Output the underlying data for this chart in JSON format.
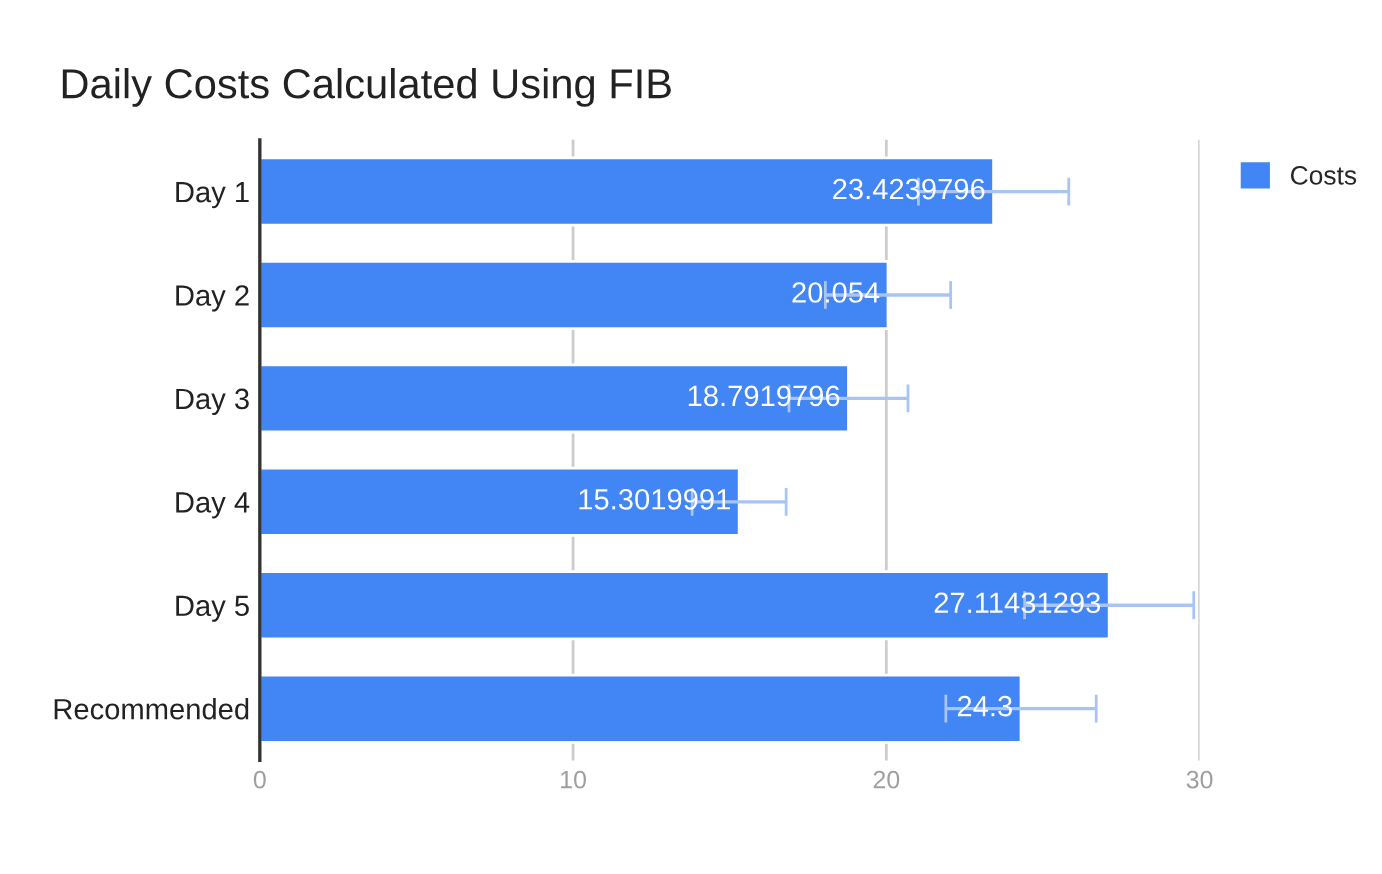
{
  "chart_data": {
    "type": "bar",
    "orientation": "horizontal",
    "title": "Daily Costs Calculated Using FIB",
    "categories": [
      "Day 1",
      "Day 2",
      "Day 3",
      "Day 4",
      "Day 5",
      "Recommended"
    ],
    "series": [
      {
        "name": "Costs",
        "color": "#4285f4",
        "values": [
          23.4239796,
          20.054,
          18.7919796,
          15.3019991,
          27.11431293,
          24.3
        ],
        "errors": [
          2.4,
          2.0,
          1.9,
          1.5,
          2.7,
          2.4
        ]
      }
    ],
    "xlim": [
      0,
      30
    ],
    "xticks": [
      0,
      10,
      20,
      30
    ],
    "grid": "x",
    "legend": "top right",
    "data_labels": true
  }
}
